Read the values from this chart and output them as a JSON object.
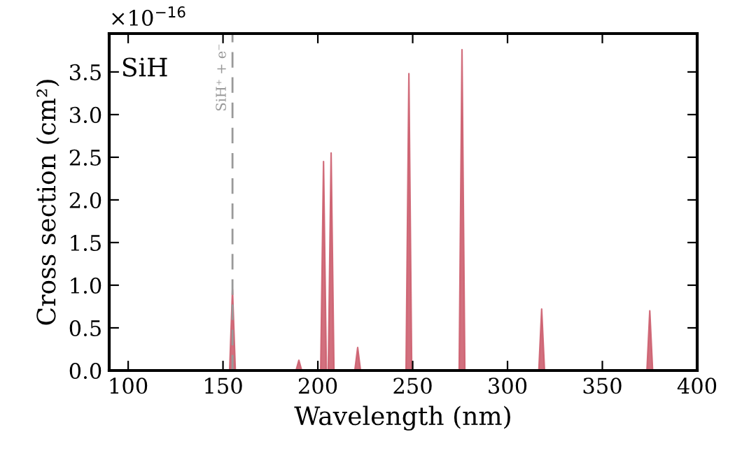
{
  "chart_data": {
    "type": "area",
    "xlabel": "Wavelength (nm)",
    "ylabel": "Cross section (cm²)",
    "annotations": [
      "SiH",
      "×10$^{−16}$"
    ],
    "series": [
      {
        "color": "#cd6070",
        "x": [
          90,
          153.5,
          155,
          156.5,
          188.5,
          190,
          191.5,
          201.5,
          203,
          204.5,
          205.5,
          207,
          208.5,
          219.5,
          221,
          222.5,
          246.5,
          248,
          249.5,
          274.5,
          276,
          277.5,
          316.5,
          318,
          319.5,
          373.5,
          375,
          376.5,
          400
        ],
        "values": [
          0,
          0,
          0.95,
          0,
          0,
          0.12,
          0,
          0,
          2.45,
          0,
          0,
          2.55,
          0,
          0,
          0.27,
          0,
          0,
          3.48,
          0,
          0,
          3.76,
          0,
          0,
          0.72,
          0,
          0,
          0.7,
          0,
          0
        ]
      }
    ],
    "ref_lines": [
      {
        "axis": "x",
        "value": 155,
        "label": "SiH⁺ + e⁻",
        "color": "#999999",
        "line_style": "dashed"
      }
    ],
    "xlim": [
      90,
      400
    ],
    "xticks": [
      100,
      150,
      200,
      250,
      300,
      350,
      400
    ],
    "ylim": [
      0,
      3.95
    ],
    "yticks": [
      {
        "value": 0,
        "label": "0.0"
      },
      0.5,
      {
        "value": 1,
        "label": "1.0"
      },
      1.5,
      {
        "value": 2,
        "label": "2.0"
      },
      2.5,
      {
        "value": 3,
        "label": "3.0"
      },
      3.5
    ],
    "grid": false,
    "legend": false
  }
}
